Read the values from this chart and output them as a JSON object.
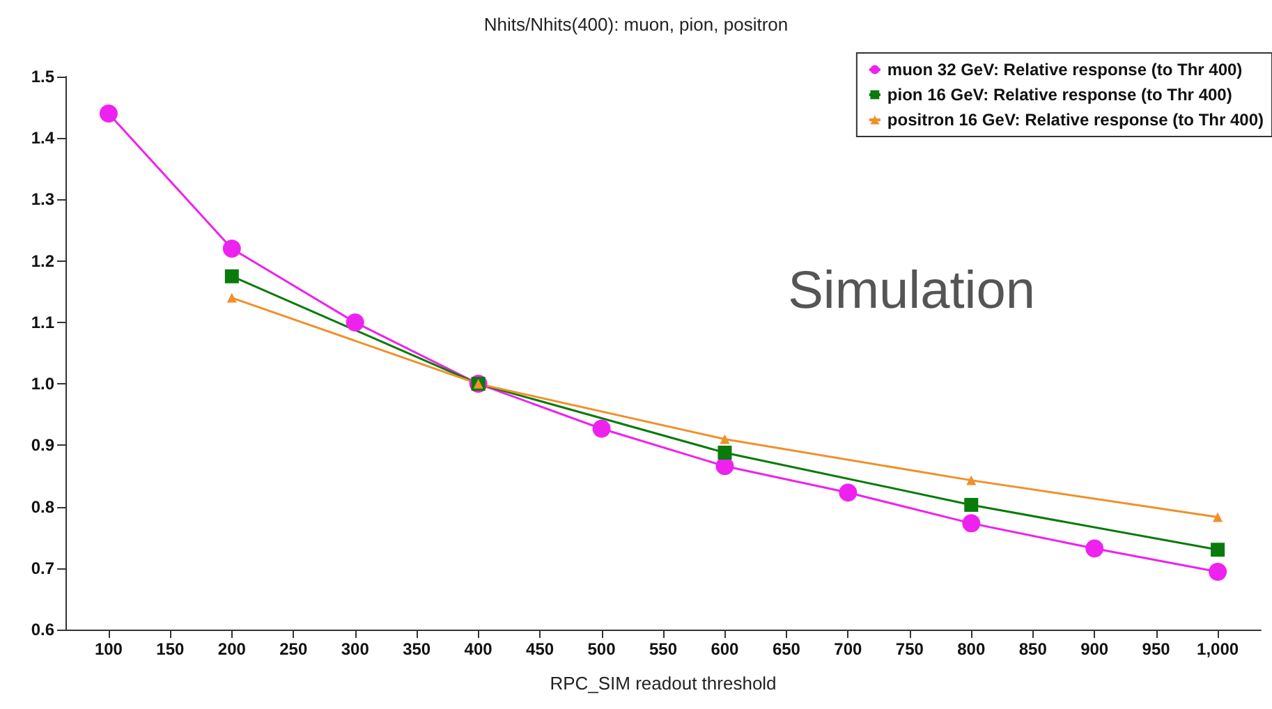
{
  "chart_data": {
    "type": "line",
    "title": "Nhits/Nhits(400): muon, pion, positron",
    "xlabel": "RPC_SIM readout threshold",
    "annotations": [
      "Simulation"
    ],
    "series": [
      {
        "name": "muon 32 GeV: Relative response (to Thr 400)",
        "color": "#ee22ee",
        "marker": "circle",
        "x": [
          100,
          200,
          300,
          400,
          500,
          600,
          700,
          800,
          900,
          1000
        ],
        "values": [
          1.44,
          1.22,
          1.1,
          1.0,
          0.927,
          0.866,
          0.823,
          0.773,
          0.732,
          0.694
        ]
      },
      {
        "name": "pion 16 GeV: Relative response (to Thr 400)",
        "color": "#0a7a0a",
        "marker": "square",
        "x": [
          200,
          400,
          600,
          800,
          1000
        ],
        "values": [
          1.175,
          1.0,
          0.888,
          0.803,
          0.73
        ]
      },
      {
        "name": "positron 16 GeV: Relative response (to Thr 400)",
        "color": "#f0902a",
        "marker": "triangle",
        "x": [
          200,
          400,
          600,
          800,
          1000
        ],
        "values": [
          1.14,
          1.0,
          0.91,
          0.843,
          0.783
        ]
      }
    ],
    "xlim": [
      65,
      1035
    ],
    "xticks": [
      100,
      150,
      200,
      250,
      300,
      350,
      400,
      450,
      500,
      550,
      600,
      650,
      700,
      750,
      800,
      850,
      900,
      950,
      {
        "value": 1000,
        "label": "1,000"
      }
    ],
    "ylim": [
      0.6,
      1.5
    ],
    "yticks": [
      0.6,
      0.7,
      0.8,
      0.9,
      {
        "value": 1,
        "label": "1.0"
      },
      1.1,
      1.2,
      1.3,
      1.4,
      1.5
    ],
    "grid": false,
    "legend": "top right",
    "line_style": "solid"
  }
}
